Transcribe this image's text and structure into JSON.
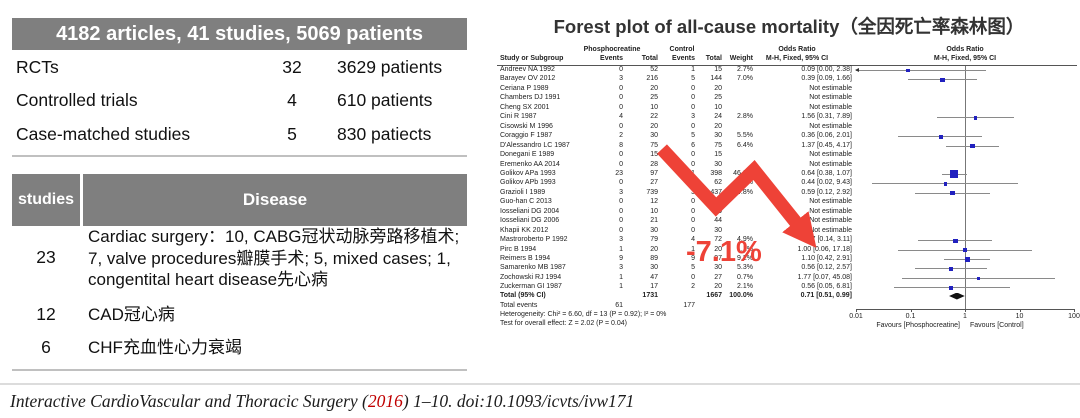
{
  "colors": {
    "header_gray": "#7f7f7f",
    "arrow_red": "#ee4237",
    "marker_blue": "#2121bf",
    "ci_gray": "#8a8a8a",
    "diamond_black": "#111111",
    "year_red": "#c00000"
  },
  "summary_table": {
    "header": "4182 articles, 41 studies, 5069 patients",
    "rows": [
      {
        "label": "RCTs",
        "count": "32",
        "patients": "3629 patients"
      },
      {
        "label": "Controlled trials",
        "count": "4",
        "patients": "610 patients"
      },
      {
        "label": "Case-matched studies",
        "count": "5",
        "patients": "830 patiects"
      }
    ]
  },
  "disease_table": {
    "col1_header": "studies",
    "col2_header": "Disease",
    "rows": [
      {
        "studies": "23",
        "disease": "Cardiac surgery：10, CABG冠状动脉旁路移植术; 7, valve procedures瓣膜手术; 5, mixed cases; 1, congentital heart disease先心病"
      },
      {
        "studies": "12",
        "disease": "CAD冠心病"
      },
      {
        "studies": "6",
        "disease": "CHF充血性心力衰竭"
      }
    ]
  },
  "annotation": {
    "text": "-7.1%",
    "color": "#ee4237"
  },
  "citation": {
    "prefix": "Interactive CardioVascular and Thoracic Surgery (",
    "year": "2016",
    "suffix": ") 1–10. doi:10.1093/icvts/ivw171",
    "year_color": "#c00000"
  },
  "chart_data": {
    "type": "forest",
    "title": "Forest plot of all-cause mortality（全因死亡率森林图）",
    "columns": {
      "study": "Study or Subgroup",
      "group1": "Phosphocreatine",
      "group2": "Control",
      "events": "Events",
      "total": "Total",
      "weight": "Weight",
      "odds_ratio": "Odds Ratio",
      "method": "M-H, Fixed, 95% CI"
    },
    "studies": [
      {
        "name": "Andreev NA 1992",
        "e1": "0",
        "t1": "52",
        "e2": "1",
        "t2": "15",
        "w": "2.7%",
        "ci": "0.09 [0.00, 2.38]",
        "or": 0.09,
        "lo": 0.004,
        "hi": 2.38
      },
      {
        "name": "Barayev OV 2012",
        "e1": "3",
        "t1": "216",
        "e2": "5",
        "t2": "144",
        "w": "7.0%",
        "ci": "0.39 [0.09, 1.66]",
        "or": 0.39,
        "lo": 0.09,
        "hi": 1.66
      },
      {
        "name": "Ceriana P 1989",
        "e1": "0",
        "t1": "20",
        "e2": "0",
        "t2": "20",
        "w": "",
        "ci": "Not estimable",
        "or": null
      },
      {
        "name": "Chambers DJ 1991",
        "e1": "0",
        "t1": "25",
        "e2": "0",
        "t2": "25",
        "w": "",
        "ci": "Not estimable",
        "or": null
      },
      {
        "name": "Cheng SX 2001",
        "e1": "0",
        "t1": "10",
        "e2": "0",
        "t2": "10",
        "w": "",
        "ci": "Not estimable",
        "or": null
      },
      {
        "name": "Cini R 1987",
        "e1": "4",
        "t1": "22",
        "e2": "3",
        "t2": "24",
        "w": "2.8%",
        "ci": "1.56 [0.31, 7.89]",
        "or": 1.56,
        "lo": 0.31,
        "hi": 7.89
      },
      {
        "name": "Cisowski M 1996",
        "e1": "0",
        "t1": "20",
        "e2": "0",
        "t2": "20",
        "w": "",
        "ci": "Not estimable",
        "or": null
      },
      {
        "name": "Coraggio F 1987",
        "e1": "2",
        "t1": "30",
        "e2": "5",
        "t2": "30",
        "w": "5.5%",
        "ci": "0.36 [0.06, 2.01]",
        "or": 0.36,
        "lo": 0.06,
        "hi": 2.01
      },
      {
        "name": "D'Alessandro LC 1987",
        "e1": "8",
        "t1": "75",
        "e2": "6",
        "t2": "75",
        "w": "6.4%",
        "ci": "1.37 [0.45, 4.17]",
        "or": 1.37,
        "lo": 0.45,
        "hi": 4.17
      },
      {
        "name": "Donegani E 1989",
        "e1": "0",
        "t1": "15",
        "e2": "0",
        "t2": "15",
        "w": "",
        "ci": "Not estimable",
        "or": null
      },
      {
        "name": "Eremenko AA 2014",
        "e1": "0",
        "t1": "28",
        "e2": "0",
        "t2": "30",
        "w": "",
        "ci": "Not estimable",
        "or": null
      },
      {
        "name": "Golikov APa 1993",
        "e1": "23",
        "t1": "97",
        "e2": "131",
        "t2": "398",
        "w": "46.0%",
        "ci": "0.64 [0.38, 1.07]",
        "or": 0.64,
        "lo": 0.38,
        "hi": 1.07,
        "big": true
      },
      {
        "name": "Golikov APb 1993",
        "e1": "0",
        "t1": "27",
        "e2": "2",
        "t2": "62",
        "w": "1.5%",
        "ci": "0.44 [0.02, 9.43]",
        "or": 0.44,
        "lo": 0.02,
        "hi": 9.43
      },
      {
        "name": "Grazioli I 1989",
        "e1": "3",
        "t1": "739",
        "e2": "3",
        "t2": "437",
        "w": "4.8%",
        "ci": "0.59 [0.12, 2.92]",
        "or": 0.59,
        "lo": 0.12,
        "hi": 2.92
      },
      {
        "name": "Guo-han C 2013",
        "e1": "0",
        "t1": "12",
        "e2": "0",
        "t2": "12",
        "w": "",
        "ci": "Not estimable",
        "or": null
      },
      {
        "name": "Iosseliani DG 2004",
        "e1": "0",
        "t1": "10",
        "e2": "0",
        "t2": "10",
        "w": "",
        "ci": "Not estimable",
        "or": null
      },
      {
        "name": "Iosseliani DG 2006",
        "e1": "0",
        "t1": "21",
        "e2": "0",
        "t2": "44",
        "w": "",
        "ci": "Not estimable",
        "or": null
      },
      {
        "name": "Khapii KK 2012",
        "e1": "0",
        "t1": "30",
        "e2": "0",
        "t2": "30",
        "w": "",
        "ci": "Not estimable",
        "or": null
      },
      {
        "name": "Mastroroberto P 1992",
        "e1": "3",
        "t1": "79",
        "e2": "4",
        "t2": "72",
        "w": "4.9%",
        "ci": "0.67 [0.14, 3.11]",
        "or": 0.67,
        "lo": 0.14,
        "hi": 3.11
      },
      {
        "name": "Pirc B 1994",
        "e1": "1",
        "t1": "20",
        "e2": "1",
        "t2": "20",
        "w": "1.1%",
        "ci": "1.00 [0.06, 17.18]",
        "or": 1.0,
        "lo": 0.06,
        "hi": 17.18
      },
      {
        "name": "Reimers B 1994",
        "e1": "9",
        "t1": "89",
        "e2": "9",
        "t2": "97",
        "w": "9.2%",
        "ci": "1.10 [0.42, 2.91]",
        "or": 1.1,
        "lo": 0.42,
        "hi": 2.91
      },
      {
        "name": "Samarenko MB 1987",
        "e1": "3",
        "t1": "30",
        "e2": "5",
        "t2": "30",
        "w": "5.3%",
        "ci": "0.56 [0.12, 2.57]",
        "or": 0.56,
        "lo": 0.12,
        "hi": 2.57
      },
      {
        "name": "Zochowski RJ 1994",
        "e1": "1",
        "t1": "47",
        "e2": "0",
        "t2": "27",
        "w": "0.7%",
        "ci": "1.77 [0.07, 45.08]",
        "or": 1.77,
        "lo": 0.07,
        "hi": 45.08
      },
      {
        "name": "Zuckerman GI 1987",
        "e1": "1",
        "t1": "17",
        "e2": "2",
        "t2": "20",
        "w": "2.1%",
        "ci": "0.56 [0.05, 6.81]",
        "or": 0.56,
        "lo": 0.05,
        "hi": 6.81
      }
    ],
    "total_row": {
      "label": "Total (95% CI)",
      "t1": "1731",
      "t2": "1667",
      "w": "100.0%",
      "ci": "0.71 [0.51, 0.99]",
      "or": 0.71,
      "lo": 0.51,
      "hi": 0.99
    },
    "total_events": {
      "label": "Total events",
      "e1": "61",
      "e2": "177"
    },
    "heterogeneity": "Heterogeneity: Chi² = 6.60, df = 13 (P = 0.92); I² = 0%",
    "overall_effect": "Test for overall effect: Z = 2.02 (P = 0.04)",
    "axis": {
      "ticks": [
        "0.01",
        "0.1",
        "1",
        "10",
        "100"
      ],
      "min": 0.01,
      "max": 100,
      "left_label": "Favours [Phosphocreatine]",
      "right_label": "Favours [Control]"
    }
  }
}
